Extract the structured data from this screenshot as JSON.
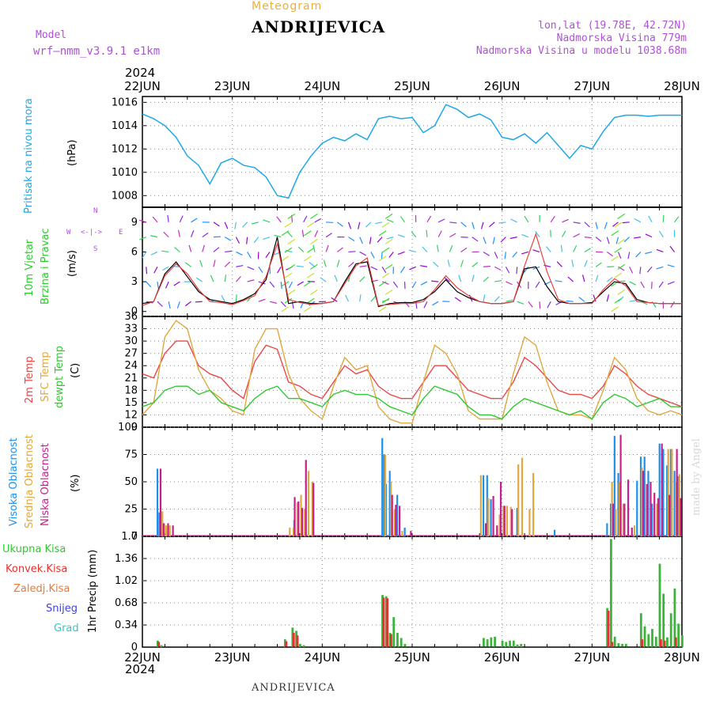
{
  "header": {
    "metegram": "Meteogram",
    "station": "ANDRIJEVICA",
    "model_label": "Model",
    "model_name": "wrf—nmm_v3.9.1  e1km",
    "year": "2024",
    "lonlat": "lon,lat (19.78E, 42.72N)",
    "alt": "Nadmorska Visina 779m",
    "alt_model": "Nadmorska Visina u modelu 1038.68m"
  },
  "footer": {
    "station": "ANDRIJEVICA",
    "year": "2024",
    "made_by": "made by Angel"
  },
  "panels": {
    "pressure": {
      "label": "Pritisak na nivou mora",
      "unit": "(hPa)",
      "color": "#1ea8e8"
    },
    "wind": {
      "label1": "10m  Vjetar",
      "label2": "Brzina i Pravac",
      "unit": "(m/s)",
      "compass_n": "N",
      "compass_s": "S",
      "compass_w": "W",
      "compass_e": "E"
    },
    "temp": {
      "label1": "2m Temp",
      "label2": "SFC Temp",
      "label3": "dewpt Temp",
      "unit": "(C)"
    },
    "cloud": {
      "label1": "Visoka Oblacnost",
      "label2": "Srednja Oblacnost",
      "label3": "Niska Oblacnost",
      "unit": "(%)"
    },
    "precip": {
      "unit": "1hr Precip (mm)",
      "legend": [
        "Ukupna Kisa",
        "Konvek.Kisa",
        "Zaledj.Kisa",
        "Snijeg",
        "Grad"
      ]
    }
  },
  "colors": {
    "pressure": "#1ea8e8",
    "wind_speed": "#000000",
    "wind_gust": "#e84040",
    "t2m": "#e84848",
    "tsfc": "#e0a840",
    "dewpt": "#30c830",
    "cloud_high": "#1e90e8",
    "cloud_mid": "#e0a840",
    "cloud_low": "#c81e8c",
    "precip_total": "#3cb43c",
    "precip_conv": "#e83030",
    "precip_frz": "#f07830",
    "snow": "#4040e0",
    "hail": "#30c8c8",
    "grid": "#888888"
  },
  "chart_data": [
    {
      "type": "line",
      "name": "pressure",
      "x_ticks": [
        "22JUN",
        "23JUN",
        "24JUN",
        "25JUN",
        "26JUN",
        "27JUN",
        "28JUN"
      ],
      "ylim": [
        1007,
        1016.5
      ],
      "y_ticks": [
        1008,
        1010,
        1012,
        1014,
        1016
      ],
      "grid": true,
      "x_hours": [
        0,
        3,
        6,
        9,
        12,
        15,
        18,
        21,
        24,
        27,
        30,
        33,
        36,
        39,
        42,
        45,
        48,
        51,
        54,
        57,
        60,
        63,
        66,
        69,
        72,
        75,
        78,
        81,
        84,
        87,
        90,
        93,
        96,
        99,
        102,
        105,
        108,
        111,
        114,
        117,
        120,
        123,
        126,
        129,
        132,
        135,
        138,
        141,
        144
      ],
      "values": [
        1015.0,
        1014.6,
        1014.0,
        1013.0,
        1011.4,
        1010.6,
        1009.0,
        1010.8,
        1011.2,
        1010.6,
        1010.4,
        1009.6,
        1008.0,
        1007.8,
        1010.0,
        1011.4,
        1012.5,
        1013.0,
        1012.7,
        1013.3,
        1012.8,
        1014.6,
        1014.8,
        1014.6,
        1014.7,
        1013.4,
        1014.0,
        1015.8,
        1015.4,
        1014.7,
        1015.0,
        1014.5,
        1013.0,
        1012.8,
        1013.3,
        1012.5,
        1013.4,
        1012.3,
        1011.2,
        1012.3,
        1012.0,
        1013.5,
        1014.7,
        1014.9,
        1014.9,
        1014.8,
        1014.9,
        1014.9,
        1014.9
      ]
    },
    {
      "type": "line",
      "name": "wind",
      "ylim": [
        -0.5,
        10.5
      ],
      "y_ticks": [
        0,
        3,
        6,
        9
      ],
      "barb_levels": [
        1,
        3,
        4.5,
        6,
        7.5,
        9
      ],
      "x_hours": [
        0,
        3,
        6,
        9,
        12,
        15,
        18,
        21,
        24,
        27,
        30,
        33,
        36,
        39,
        42,
        45,
        48,
        51,
        54,
        57,
        60,
        63,
        66,
        69,
        72,
        75,
        78,
        81,
        84,
        87,
        90,
        93,
        96,
        99,
        102,
        105,
        108,
        111,
        114,
        117,
        120,
        123,
        126,
        129,
        132,
        135,
        138,
        141,
        144
      ],
      "series": [
        {
          "values": [
            0.8,
            1.0,
            3.8,
            5.0,
            3.5,
            2.0,
            1.2,
            1.0,
            0.8,
            1.2,
            1.8,
            3.2,
            7.5,
            0.8,
            1.0,
            0.8,
            0.8,
            1.0,
            3.0,
            4.8,
            5.0,
            0.5,
            0.8,
            0.9,
            0.9,
            1.2,
            2.0,
            3.2,
            2.0,
            1.4,
            1.0,
            0.8,
            0.8,
            1.0,
            4.3,
            4.5,
            2.5,
            1.0,
            0.8,
            0.8,
            0.9,
            2.0,
            3.0,
            2.8,
            1.2,
            0.9,
            0.8,
            0.8,
            0.8
          ]
        },
        {
          "values": [
            0.6,
            1.0,
            3.6,
            4.8,
            3.8,
            2.2,
            1.0,
            0.9,
            0.7,
            1.1,
            1.6,
            3.5,
            6.8,
            1.2,
            0.9,
            0.7,
            0.8,
            1.0,
            2.8,
            4.6,
            5.4,
            0.6,
            0.7,
            0.8,
            0.8,
            1.0,
            2.2,
            3.6,
            2.4,
            1.6,
            1.0,
            0.8,
            0.8,
            1.0,
            4.6,
            7.8,
            4.0,
            1.2,
            0.8,
            0.8,
            0.8,
            2.2,
            3.3,
            2.6,
            1.0,
            0.9,
            0.8,
            0.8,
            0.8
          ]
        }
      ]
    },
    {
      "type": "line",
      "name": "temperature",
      "ylim": [
        9,
        36
      ],
      "y_ticks": [
        9,
        12,
        15,
        18,
        21,
        24,
        27,
        30,
        33,
        36
      ],
      "x_hours": [
        0,
        3,
        6,
        9,
        12,
        15,
        18,
        21,
        24,
        27,
        30,
        33,
        36,
        39,
        42,
        45,
        48,
        51,
        54,
        57,
        60,
        63,
        66,
        69,
        72,
        75,
        78,
        81,
        84,
        87,
        90,
        93,
        96,
        99,
        102,
        105,
        108,
        111,
        114,
        117,
        120,
        123,
        126,
        129,
        132,
        135,
        138,
        141,
        144
      ],
      "series": [
        {
          "values": [
            22,
            21,
            27,
            30,
            30,
            24,
            22,
            21,
            18,
            16,
            25,
            29,
            28,
            20,
            19,
            17,
            16,
            20,
            24,
            22,
            23,
            19,
            17,
            16,
            16,
            20,
            24,
            24,
            21,
            18,
            17,
            16,
            16,
            20,
            26,
            24,
            21,
            18,
            17,
            17,
            16,
            19,
            24,
            22,
            19,
            17,
            16,
            15,
            14
          ]
        },
        {
          "values": [
            12,
            15,
            31,
            35,
            33,
            23,
            18,
            16,
            13,
            12,
            28,
            33,
            33,
            22,
            16,
            13,
            11,
            19,
            26,
            23,
            24,
            14,
            11,
            10,
            10,
            20,
            29,
            27,
            22,
            13,
            11,
            11,
            11,
            22,
            31,
            29,
            20,
            13,
            12,
            12,
            11,
            18,
            26,
            23,
            16,
            13,
            12,
            13,
            12
          ]
        },
        {
          "values": [
            14,
            15,
            18,
            19,
            19,
            17,
            18,
            15,
            14,
            13,
            16,
            18,
            19,
            16,
            16,
            15,
            14,
            17,
            18,
            17,
            17,
            16,
            14,
            13,
            12,
            16,
            19,
            18,
            17,
            14,
            12,
            12,
            11,
            14,
            16,
            15,
            14,
            13,
            12,
            13,
            11,
            15,
            17,
            16,
            14,
            15,
            16,
            14,
            14
          ]
        }
      ]
    },
    {
      "type": "bar",
      "name": "cloud",
      "ylim": [
        0,
        100
      ],
      "y_ticks": [
        0,
        25,
        50,
        75,
        100
      ],
      "series": [
        {
          "x_hours": [
            4,
            4.5,
            40.5,
            41.5,
            64,
            64.5,
            65,
            66,
            68,
            70,
            91,
            92,
            93,
            100,
            110,
            124,
            125,
            126,
            127,
            132,
            133,
            134,
            135,
            136,
            138,
            139,
            140,
            141,
            142,
            143
          ],
          "values": [
            62,
            22,
            15,
            25,
            90,
            75,
            48,
            60,
            38,
            8,
            56,
            56,
            34,
            26,
            6,
            12,
            30,
            92,
            58,
            51,
            73,
            73,
            60,
            30,
            85,
            80,
            65,
            80,
            60,
            55
          ]
        },
        {
          "x_hours": [
            5,
            5.5,
            6,
            7,
            39,
            40,
            41,
            42,
            43,
            44,
            45,
            64.5,
            66,
            67,
            69,
            90,
            92,
            95,
            96,
            97,
            98,
            100,
            101,
            103,
            104,
            125,
            126,
            127,
            128,
            131,
            133,
            137,
            140,
            141,
            142,
            143
          ],
          "values": [
            23,
            12,
            10,
            10,
            8,
            8,
            31,
            38,
            25,
            60,
            50,
            75,
            50,
            25,
            5,
            56,
            35,
            20,
            28,
            28,
            27,
            66,
            72,
            25,
            58,
            50,
            25,
            50,
            30,
            10,
            63,
            30,
            80,
            80,
            50,
            57
          ]
        },
        {
          "x_hours": [
            4.2,
            5,
            6.2,
            7.5,
            40,
            41,
            42,
            43,
            45,
            66,
            67,
            68,
            71,
            91,
            93,
            94,
            95,
            96,
            98,
            125,
            127,
            128,
            129,
            130,
            133,
            134,
            135,
            136,
            137,
            138,
            140,
            142,
            143
          ],
          "values": [
            62,
            12,
            12,
            10,
            36,
            32,
            26,
            70,
            49,
            38,
            29,
            28,
            5,
            12,
            37,
            10,
            50,
            28,
            25,
            30,
            93,
            30,
            52,
            8,
            60,
            48,
            50,
            40,
            35,
            85,
            38,
            80,
            35
          ]
        }
      ]
    },
    {
      "type": "bar",
      "name": "precip",
      "ylim": [
        0,
        1.7
      ],
      "y_ticks": [
        0,
        0.34,
        0.68,
        1.02,
        1.36,
        1.7
      ],
      "series": [
        {
          "x_hours": [
            4,
            5,
            38,
            40,
            41,
            42,
            43,
            64,
            65,
            66,
            67,
            68,
            69,
            70,
            91,
            92,
            93,
            94,
            96,
            97,
            98,
            99,
            100,
            101,
            124,
            125,
            126,
            127,
            128,
            129,
            133,
            134,
            135,
            136,
            137,
            138,
            139,
            140,
            141,
            142,
            143,
            144
          ],
          "values": [
            0.1,
            0.03,
            0.12,
            0.3,
            0.25,
            0.05,
            0.03,
            0.8,
            0.78,
            0.22,
            0.46,
            0.22,
            0.14,
            0.05,
            0.14,
            0.12,
            0.15,
            0.16,
            0.1,
            0.08,
            0.1,
            0.1,
            0.04,
            0.05,
            0.6,
            1.66,
            0.16,
            0.06,
            0.05,
            0.05,
            0.52,
            0.32,
            0.2,
            0.28,
            0.16,
            1.28,
            0.82,
            0.15,
            0.52,
            0.9,
            0.36,
            0.18
          ]
        },
        {
          "x_hours": [
            4.3,
            38.3,
            40.3,
            41.3,
            64.3,
            65.3,
            66.3,
            124.3,
            125.3,
            133.3,
            138.3,
            139.3,
            142.3
          ],
          "values": [
            0.08,
            0.09,
            0.22,
            0.18,
            0.76,
            0.75,
            0.2,
            0.56,
            0.08,
            0.12,
            0.12,
            0.1,
            0.15
          ]
        }
      ]
    }
  ]
}
